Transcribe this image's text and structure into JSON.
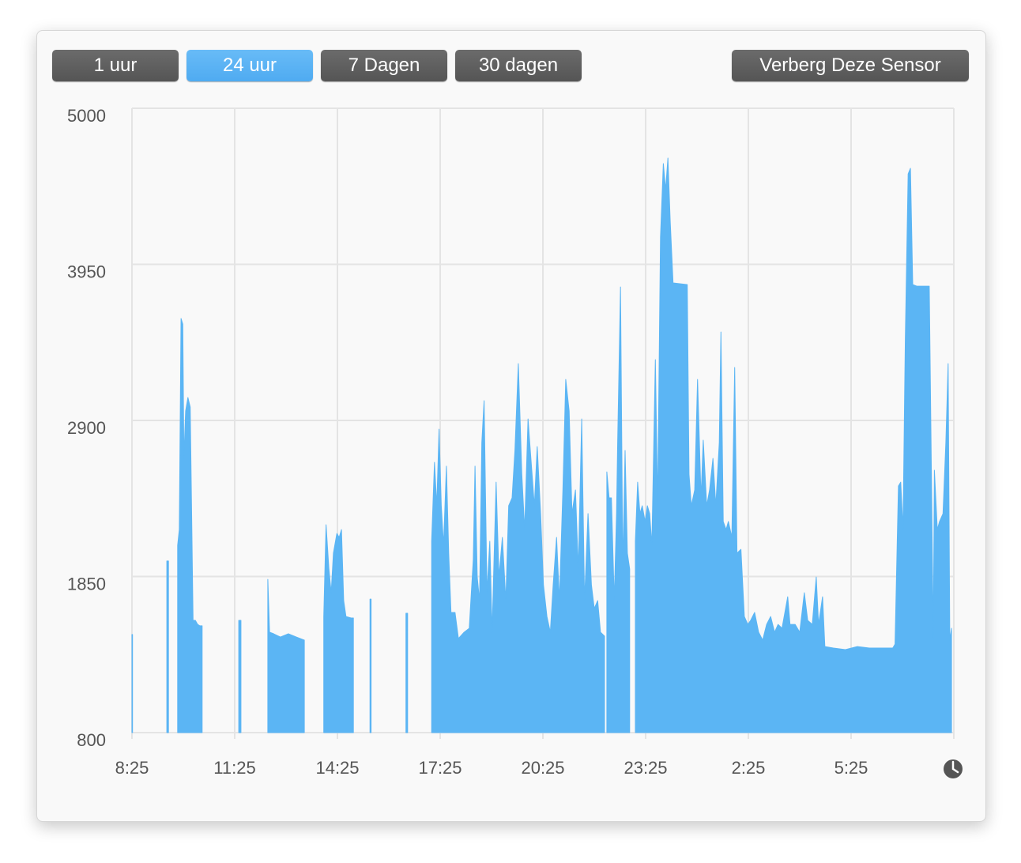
{
  "buttons": [
    "1 uur",
    "24 uur",
    "7 Dagen",
    "30 dagen"
  ],
  "selected": 1,
  "hide_button": "Verberg Deze Sensor",
  "chart_data": {
    "type": "area",
    "color": "#5bb5f4",
    "grid": true,
    "ylim": [
      800,
      5000
    ],
    "yticks": [
      800,
      1850,
      2900,
      3950,
      5000
    ],
    "xlim": [
      "8:25",
      "8:25"
    ],
    "xticks": [
      "8:25",
      "11:25",
      "14:25",
      "17:25",
      "20:25",
      "23:25",
      "2:25",
      "5:25"
    ],
    "x": [
      "8:25",
      "8:26",
      null,
      "9:26",
      "9:29",
      null,
      "9:45",
      "9:48",
      "9:51",
      "9:54",
      "9:56",
      "9:59",
      "10:03",
      "10:07",
      "10:12",
      "10:16",
      "10:20",
      "10:24",
      "10:28",
      null,
      "11:32",
      "11:36",
      null,
      "12:23",
      "12:26",
      "12:33",
      "12:45",
      "12:59",
      "13:13",
      "13:27",
      null,
      "14:01",
      "14:05",
      "14:10",
      "14:14",
      "14:18",
      "14:24",
      "14:28",
      "14:32",
      "14:36",
      "14:40",
      "14:49",
      "14:53",
      null,
      "15:22",
      "15:24",
      null,
      "16:25",
      "16:28",
      null,
      "17:10",
      "17:15",
      "17:19",
      "17:23",
      "17:27",
      "17:31",
      "17:36",
      "17:40",
      "17:44",
      "17:51",
      "17:57",
      "18:07",
      "18:16",
      "18:23",
      "18:26",
      "18:30",
      "18:34",
      "18:38",
      "18:42",
      "18:47",
      "18:52",
      "18:56",
      "19:03",
      "19:08",
      "19:14",
      "19:20",
      "19:25",
      "19:31",
      "19:36",
      "19:42",
      "19:48",
      "19:53",
      "19:59",
      "20:04",
      "20:10",
      "20:15",
      "20:21",
      "20:26",
      "20:32",
      "20:38",
      "20:43",
      "20:49",
      "20:54",
      "21:00",
      "21:05",
      "21:11",
      "21:16",
      "21:22",
      "21:27",
      "21:33",
      "21:38",
      "21:44",
      "21:50",
      "21:55",
      "22:01",
      "22:06",
      "22:13",
      null,
      "22:17",
      "22:21",
      "22:25",
      "22:30",
      "22:34",
      "22:36",
      "22:41",
      "22:45",
      "22:49",
      "22:53",
      "22:57",
      null,
      "23:07",
      "23:11",
      "23:15",
      "23:19",
      "23:24",
      "23:28",
      "23:32",
      "23:36",
      "23:42",
      "23:46",
      "23:51",
      "23:56",
      "0:00",
      "0:04",
      "0:08",
      "0:13",
      "0:38",
      "0:41",
      "0:45",
      "0:51",
      "0:56",
      "1:02",
      "1:06",
      "1:12",
      "1:17",
      "1:23",
      "1:28",
      "1:34",
      "1:37",
      "1:41",
      "1:46",
      "1:50",
      "1:56",
      "2:01",
      "2:05",
      "2:12",
      "2:18",
      "2:24",
      "2:29",
      "2:36",
      "2:43",
      "2:50",
      "2:57",
      "3:04",
      "3:11",
      "3:17",
      "3:24",
      "3:34",
      "3:38",
      "3:47",
      "3:55",
      "4:03",
      "4:09",
      "4:17",
      "4:24",
      "4:28",
      "4:35",
      "4:39",
      "4:54",
      "5:15",
      "5:36",
      "5:57",
      "6:18",
      "6:38",
      "6:42",
      "6:48",
      "6:52",
      "6:56",
      "7:00",
      "7:05",
      "7:09",
      "7:13",
      "7:20",
      "7:34",
      "7:42",
      "7:46",
      "7:49",
      "7:51",
      "7:56",
      "8:00",
      "8:06",
      "8:11",
      "8:15",
      "8:18",
      "8:21"
    ],
    "values": [
      1460,
      1460,
      null,
      1954,
      1954,
      null,
      2060,
      2166,
      3586,
      3548,
      2645,
      2964,
      3054,
      2990,
      1555,
      1555,
      1528,
      1518,
      1518,
      null,
      1555,
      1555,
      null,
      1831,
      1475,
      1465,
      1443,
      1465,
      1443,
      1422,
      null,
      1581,
      2198,
      1900,
      1741,
      2007,
      2140,
      2113,
      2166,
      1688,
      1581,
      1571,
      1571,
      null,
      1698,
      1698,
      null,
      1603,
      1603,
      null,
      2087,
      2618,
      2326,
      2841,
      2326,
      2060,
      2592,
      2007,
      1608,
      1608,
      1433,
      1475,
      1502,
      1964,
      2592,
      1847,
      1688,
      2751,
      3033,
      1741,
      2087,
      1475,
      2485,
      1847,
      2113,
      1688,
      2326,
      2379,
      2698,
      3282,
      2539,
      2166,
      2910,
      2645,
      2326,
      2724,
      2273,
      1794,
      1581,
      1475,
      1794,
      2113,
      1688,
      2432,
      3176,
      2964,
      2273,
      2432,
      1900,
      2910,
      1688,
      2273,
      1794,
      1635,
      1688,
      1475,
      1449,
      null,
      2554,
      2379,
      2379,
      1688,
      2273,
      2751,
      3798,
      1900,
      2698,
      2007,
      1900,
      null,
      2087,
      2485,
      2273,
      2326,
      2220,
      2326,
      2273,
      2060,
      3309,
      2326,
      4133,
      4628,
      4452,
      4665,
      4240,
      3825,
      3814,
      2538,
      2326,
      2432,
      3176,
      2379,
      2767,
      2326,
      2432,
      2645,
      2326,
      2751,
      3495,
      2220,
      2166,
      2220,
      2113,
      3256,
      2007,
      2033,
      1581,
      1528,
      1555,
      1608,
      1475,
      1422,
      1528,
      1581,
      1475,
      1528,
      1502,
      1714,
      1528,
      1528,
      1475,
      1741,
      1555,
      1528,
      1847,
      1528,
      1714,
      1379,
      1369,
      1358,
      1379,
      1369,
      1369,
      1369,
      1395,
      2459,
      2485,
      2166,
      3443,
      4558,
      4596,
      3814,
      3803,
      3803,
      3803,
      2459,
      1422,
      2565,
      2166,
      2220,
      2273,
      2751,
      3282,
      1422,
      1502
    ]
  }
}
